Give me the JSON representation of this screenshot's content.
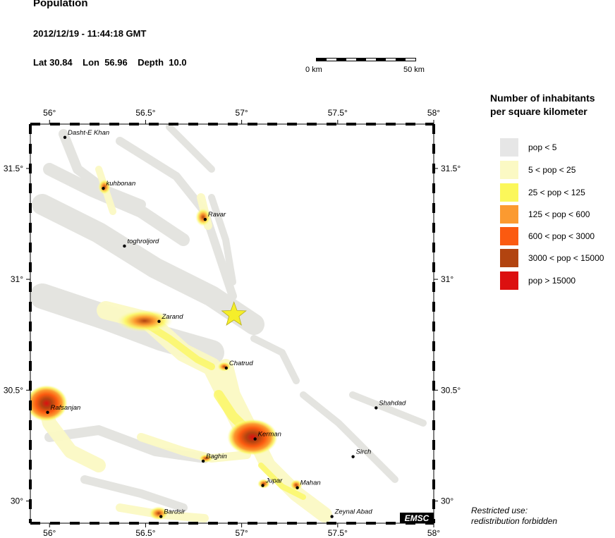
{
  "header": {
    "title": "Population",
    "datetime": "2012/12/19 - 11:44:18 GMT",
    "lat_label": "Lat",
    "lat": "30.84",
    "lon_label": "Lon",
    "lon": "56.96",
    "depth_label": "Depth",
    "depth": "10.0"
  },
  "scale_bar": {
    "start_label": "0 km",
    "end_label": "50 km"
  },
  "legend": {
    "title_line1": "Number of inhabitants",
    "title_line2": "per square kilometer",
    "items": [
      {
        "label": "pop < 5",
        "color": "#e6e6e6"
      },
      {
        "label": "5 < pop < 25",
        "color": "#fbf9c4"
      },
      {
        "label": "25 < pop < 125",
        "color": "#fbf75a"
      },
      {
        "label": "125 < pop < 600",
        "color": "#fb9a30"
      },
      {
        "label": "600 < pop < 3000",
        "color": "#fb5a10"
      },
      {
        "label": "3000 < pop < 15000",
        "color": "#b24410"
      },
      {
        "label": "pop > 15000",
        "color": "#dc1010"
      }
    ]
  },
  "map": {
    "lon_ticks": [
      "56°",
      "56.5°",
      "57°",
      "57.5°",
      "58°"
    ],
    "lat_ticks": [
      "31.5°",
      "31°",
      "30.5°",
      "30°"
    ],
    "epicenter": {
      "lat": 30.84,
      "lon": 56.96,
      "icon": "star-icon",
      "color": "#f5ee2a"
    },
    "cities": [
      {
        "name": "Dasht-E Khan",
        "lat": 31.64,
        "lon": 56.08
      },
      {
        "name": "kuhbonan",
        "lat": 31.41,
        "lon": 56.28
      },
      {
        "name": "Ravar",
        "lat": 31.27,
        "lon": 56.81
      },
      {
        "name": "toghroljord",
        "lat": 31.15,
        "lon": 56.39
      },
      {
        "name": "Zarand",
        "lat": 30.81,
        "lon": 56.57
      },
      {
        "name": "Chatrud",
        "lat": 30.6,
        "lon": 56.92
      },
      {
        "name": "Shahdad",
        "lat": 30.42,
        "lon": 57.7
      },
      {
        "name": "Rafsanjan",
        "lat": 30.4,
        "lon": 55.99
      },
      {
        "name": "Kerman",
        "lat": 30.28,
        "lon": 57.07
      },
      {
        "name": "Sirch",
        "lat": 30.2,
        "lon": 57.58
      },
      {
        "name": "Baghin",
        "lat": 30.18,
        "lon": 56.8
      },
      {
        "name": "Jupar",
        "lat": 30.07,
        "lon": 57.11
      },
      {
        "name": "Mahan",
        "lat": 30.06,
        "lon": 57.29
      },
      {
        "name": "Zeynal Abad",
        "lat": 29.93,
        "lon": 57.47
      },
      {
        "name": "Bardsir",
        "lat": 29.93,
        "lon": 56.58
      }
    ]
  },
  "watermark": "EMSC",
  "note": {
    "line1": "Restricted use:",
    "line2": "redistribution forbidden"
  }
}
